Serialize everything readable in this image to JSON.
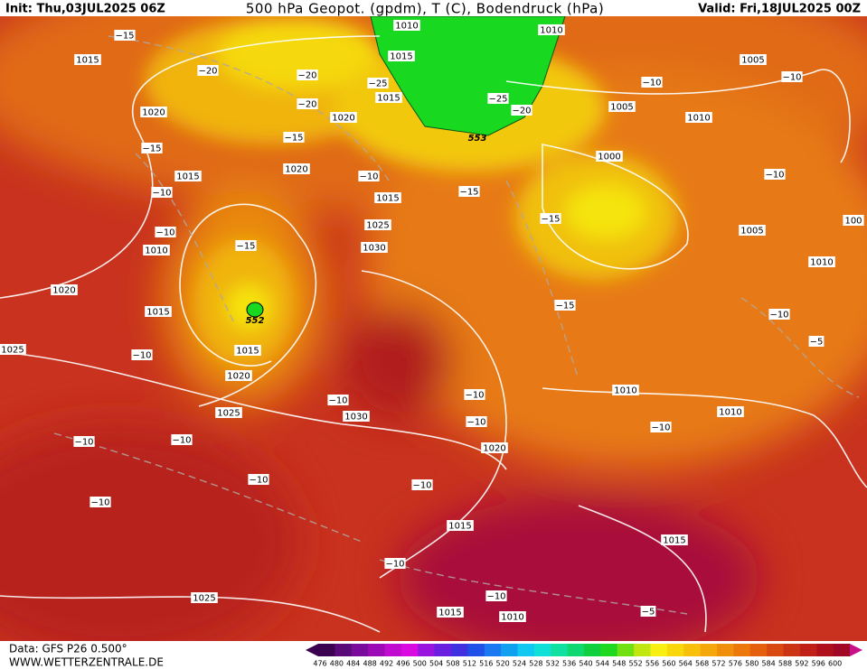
{
  "header": {
    "init": "Init: Thu,03JUL2025 06Z",
    "title": "500 hPa Geopot. (gpdm), T (C), Bodendruck (hPa)",
    "valid": "Valid: Fri,18JUL2025 00Z"
  },
  "footer": {
    "data_source": "Data: GFS P26 0.500°",
    "website": "WWW.WETTERZENTRALE.DE"
  },
  "colorbar": {
    "labels": [
      "476",
      "480",
      "484",
      "488",
      "492",
      "496",
      "500",
      "504",
      "508",
      "512",
      "516",
      "520",
      "524",
      "528",
      "532",
      "536",
      "540",
      "544",
      "548",
      "552",
      "556",
      "560",
      "564",
      "568",
      "572",
      "576",
      "580",
      "584",
      "588",
      "592",
      "596",
      "600"
    ]
  },
  "map": {
    "isobar_labels": [
      "1010",
      "1010",
      "1015",
      "1015",
      "1005",
      "1020",
      "1015",
      "1005",
      "1010",
      "1020",
      "1015",
      "1020",
      "1000",
      "1015",
      "1025",
      "1010",
      "1030",
      "1005",
      "1010",
      "1020",
      "1015",
      "1015",
      "1020",
      "1025",
      "1010",
      "1025",
      "1030",
      "1010",
      "1020",
      "1015",
      "1015",
      "1025",
      "1015",
      "1010",
      "100"
    ],
    "temperature_labels": [
      "−15",
      "−20",
      "−20",
      "−25",
      "−20",
      "−25",
      "−20",
      "−10",
      "−10",
      "−15",
      "−15",
      "−10",
      "−15",
      "−10",
      "−10",
      "−10",
      "−15",
      "−15",
      "−15",
      "−10",
      "−10",
      "−10",
      "−10",
      "−10",
      "−10",
      "−10",
      "−10",
      "−10",
      "−10",
      "−10",
      "−10",
      "−10",
      "−5",
      "−5"
    ],
    "height_labels": [
      "553",
      "552"
    ]
  }
}
